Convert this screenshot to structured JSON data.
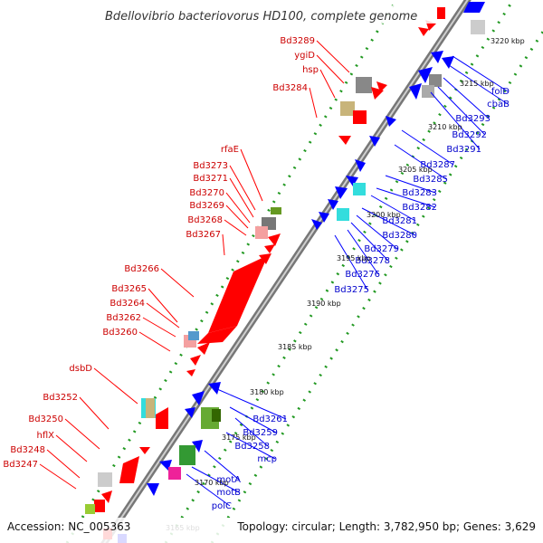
{
  "title": "Bdellovibrio bacteriovorus HD100, complete genome",
  "footer": {
    "accession": "Accession: NC_005363",
    "summary": "Topology: circular; Length: 3,782,950 bp; Genes: 3,629"
  },
  "scale_labels": [
    "3220 kbp",
    "3215 kbp",
    "3210 kbp",
    "3205 kbp",
    "3200 kbp",
    "3195 kbp",
    "3190 kbp",
    "3185 kbp",
    "3180 kbp",
    "3175 kbp",
    "3170 kbp",
    "3165 kbp"
  ],
  "reverse_labels": [
    "Bd3289",
    "ygiD",
    "hsp",
    "Bd3284",
    "rfaE",
    "Bd3273",
    "Bd3271",
    "Bd3270",
    "Bd3269",
    "Bd3268",
    "Bd3267",
    "Bd3266",
    "Bd3265",
    "Bd3264",
    "Bd3262",
    "Bd3260",
    "dsbD",
    "Bd3252",
    "Bd3250",
    "hflX",
    "Bd3248",
    "Bd3247"
  ],
  "forward_labels": [
    "folD",
    "cbaB",
    "Bd3293",
    "Bd3292",
    "Bd3291",
    "Bd3287",
    "Bd3285",
    "Bd3283",
    "Bd3282",
    "Bd3281",
    "Bd3280",
    "Bd3279",
    "Bd3278",
    "Bd3276",
    "Bd3275",
    "Bd3261",
    "Bd3259",
    "Bd3258",
    "mcp",
    "motA",
    "motB",
    "polC"
  ],
  "colors": {
    "reverse_strand": "#ff0000",
    "forward_strand": "#0000ff",
    "backbone": "#888888",
    "dots": "#229922"
  }
}
